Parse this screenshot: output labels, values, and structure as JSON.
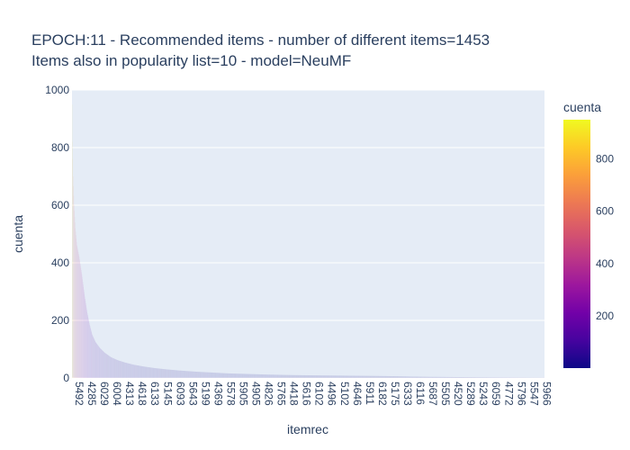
{
  "chart_data": {
    "type": "bar",
    "title_lines": [
      "EPOCH:11 - Recommended items - number of different items=1453",
      "Items also in popularity list=10 - model=NeuMF"
    ],
    "xlabel": "itemrec",
    "ylabel": "cuenta",
    "colorbar_title": "cuenta",
    "ylim": [
      0,
      1000
    ],
    "yticks": [
      0,
      200,
      400,
      600,
      800,
      1000
    ],
    "ytick_labels": [
      "0",
      "200",
      "400",
      "600",
      "800",
      "1000"
    ],
    "colorbar_range": [
      0,
      950
    ],
    "colorbar_ticks": [
      200,
      400,
      600,
      800
    ],
    "colorbar_tick_labels": [
      "200",
      "400",
      "600",
      "800"
    ],
    "colorscale": [
      "#0d0887",
      "#46039f",
      "#7201a8",
      "#9c179e",
      "#bd3786",
      "#d8576b",
      "#ed7953",
      "#fb9f3a",
      "#fdca26",
      "#f0f921"
    ],
    "bar_count": 1453,
    "bar_alpha": 0.15,
    "x_tick_labels": [
      "5492",
      "4285",
      "6029",
      "6004",
      "4313",
      "4618",
      "6133",
      "5145",
      "6093",
      "5643",
      "5199",
      "4369",
      "5578",
      "5905",
      "4905",
      "4826",
      "5765",
      "4418",
      "5616",
      "6102",
      "4496",
      "5102",
      "4646",
      "5911",
      "6182",
      "5175",
      "6333",
      "6116",
      "5687",
      "5505",
      "4520",
      "5289",
      "5243",
      "6059",
      "4772",
      "5796",
      "5547",
      "5966"
    ],
    "value_profile": [
      [
        0,
        950
      ],
      [
        1,
        820
      ],
      [
        3,
        700
      ],
      [
        6,
        600
      ],
      [
        10,
        520
      ],
      [
        15,
        460
      ],
      [
        22,
        420
      ],
      [
        30,
        360
      ],
      [
        38,
        290
      ],
      [
        46,
        230
      ],
      [
        54,
        185
      ],
      [
        62,
        150
      ],
      [
        72,
        125
      ],
      [
        85,
        105
      ],
      [
        100,
        88
      ],
      [
        120,
        72
      ],
      [
        140,
        62
      ],
      [
        165,
        53
      ],
      [
        190,
        46
      ],
      [
        220,
        40
      ],
      [
        250,
        35
      ],
      [
        290,
        30
      ],
      [
        330,
        26
      ],
      [
        380,
        22
      ],
      [
        430,
        19
      ],
      [
        480,
        16
      ],
      [
        540,
        14
      ],
      [
        600,
        12
      ],
      [
        680,
        10
      ],
      [
        760,
        9
      ],
      [
        850,
        8
      ],
      [
        940,
        7
      ],
      [
        1000,
        6
      ],
      [
        1040,
        5
      ],
      [
        1100,
        4
      ],
      [
        1200,
        3
      ],
      [
        1300,
        2
      ],
      [
        1452,
        1
      ]
    ]
  }
}
